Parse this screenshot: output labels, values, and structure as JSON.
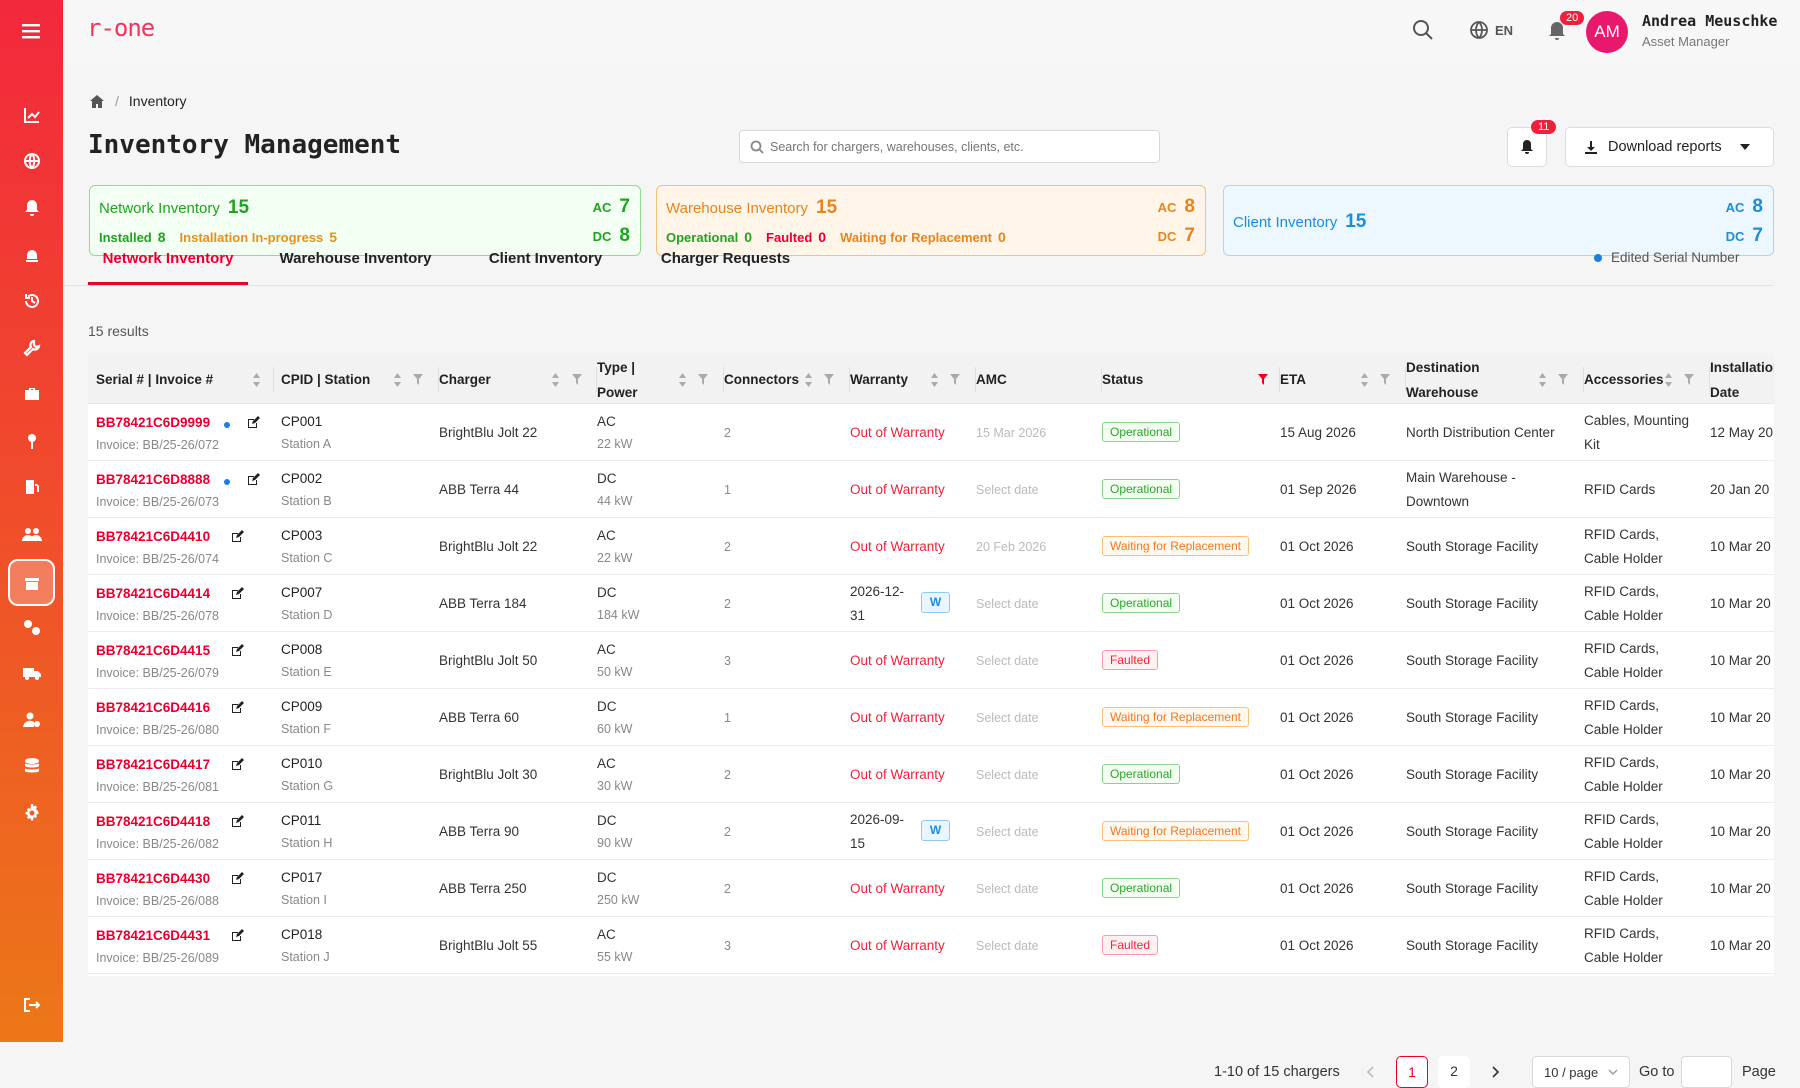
{
  "app": {
    "logo": "r-one"
  },
  "user": {
    "initials": "AM",
    "name": "Andrea Meuschke",
    "role": "Asset Manager"
  },
  "header": {
    "language": "EN",
    "notifications_count": "20"
  },
  "breadcrumb": {
    "current": "Inventory"
  },
  "page": {
    "title": "Inventory Management",
    "search_placeholder": "Search for chargers, warehouses, clients, etc.",
    "alerts_count": "11",
    "download_label": "Download reports"
  },
  "cards": {
    "network": {
      "title": "Network Inventory",
      "total": "15",
      "installed_label": "Installed",
      "installed": "8",
      "inprogress_label": "Installation In-progress",
      "inprogress": "5",
      "ac_label": "AC",
      "ac": "7",
      "dc_label": "DC",
      "dc": "8"
    },
    "warehouse": {
      "title": "Warehouse Inventory",
      "total": "15",
      "operational_label": "Operational",
      "operational": "0",
      "faulted_label": "Faulted",
      "faulted": "0",
      "waiting_label": "Waiting for Replacement",
      "waiting": "0",
      "ac_label": "AC",
      "ac": "8",
      "dc_label": "DC",
      "dc": "7"
    },
    "client": {
      "title": "Client Inventory",
      "total": "15",
      "ac_label": "AC",
      "ac": "8",
      "dc_label": "DC",
      "dc": "7"
    }
  },
  "tabs": [
    "Network Inventory",
    "Warehouse Inventory",
    "Client Inventory",
    "Charger Requests"
  ],
  "legend": {
    "edited_serial": "Edited Serial Number"
  },
  "results": "15 results",
  "columns": {
    "serial": "Serial # | Invoice #",
    "cpid": "CPID | Station",
    "charger": "Charger",
    "type": "Type |",
    "type2": "Power",
    "connectors": "Connectors",
    "warranty": "Warranty",
    "amc": "AMC",
    "status": "Status",
    "eta": "ETA",
    "dest": "Destination",
    "dest2": "Warehouse",
    "accessories": "Accessories",
    "install": "Installation",
    "install2": "Date"
  },
  "rows": [
    {
      "serial": "BB78421C6D9999",
      "invoice": "Invoice: BB/25-26/072",
      "cpid": "CP001",
      "station": "Station A",
      "charger": "BrightBlu Jolt 22",
      "type": "AC",
      "power": "22 kW",
      "connectors": "2",
      "warranty": "Out of Warranty",
      "amc": "15 Mar 2026",
      "status": "Operational",
      "eta": "15 Aug 2026",
      "dest": "North Distribution Center",
      "dest2": "",
      "acc": "Cables, Mounting",
      "acc2": "Kit",
      "install": "12 May 20"
    },
    {
      "serial": "BB78421C6D8888",
      "invoice": "Invoice: BB/25-26/073",
      "cpid": "CP002",
      "station": "Station B",
      "charger": "ABB Terra 44",
      "type": "DC",
      "power": "44 kW",
      "connectors": "1",
      "warranty": "Out of Warranty",
      "amc": "Select date",
      "status": "Operational",
      "eta": "01 Sep 2026",
      "dest": "Main Warehouse -",
      "dest2": "Downtown",
      "acc": "RFID Cards",
      "acc2": "",
      "install": "20 Jan 20"
    },
    {
      "serial": "BB78421C6D4410",
      "invoice": "Invoice: BB/25-26/074",
      "cpid": "CP003",
      "station": "Station C",
      "charger": "BrightBlu Jolt 22",
      "type": "AC",
      "power": "22 kW",
      "connectors": "2",
      "warranty": "Out of Warranty",
      "amc": "20 Feb 2026",
      "status": "Waiting for Replacement",
      "eta": "01 Oct 2026",
      "dest": "South Storage Facility",
      "dest2": "",
      "acc": "RFID Cards,",
      "acc2": "Cable Holder",
      "install": "10 Mar 20"
    },
    {
      "serial": "BB78421C6D4414",
      "invoice": "Invoice: BB/25-26/078",
      "cpid": "CP007",
      "station": "Station D",
      "charger": "ABB Terra 184",
      "type": "DC",
      "power": "184 kW",
      "connectors": "2",
      "warranty": "2026-12-",
      "warranty2": "31",
      "wbadge": "W",
      "amc": "Select date",
      "status": "Operational",
      "eta": "01 Oct 2026",
      "dest": "South Storage Facility",
      "dest2": "",
      "acc": "RFID Cards,",
      "acc2": "Cable Holder",
      "install": "10 Mar 20"
    },
    {
      "serial": "BB78421C6D4415",
      "invoice": "Invoice: BB/25-26/079",
      "cpid": "CP008",
      "station": "Station E",
      "charger": "BrightBlu Jolt 50",
      "type": "AC",
      "power": "50 kW",
      "connectors": "3",
      "warranty": "Out of Warranty",
      "amc": "Select date",
      "status": "Faulted",
      "eta": "01 Oct 2026",
      "dest": "South Storage Facility",
      "dest2": "",
      "acc": "RFID Cards,",
      "acc2": "Cable Holder",
      "install": "10 Mar 20"
    },
    {
      "serial": "BB78421C6D4416",
      "invoice": "Invoice: BB/25-26/080",
      "cpid": "CP009",
      "station": "Station F",
      "charger": "ABB Terra 60",
      "type": "DC",
      "power": "60 kW",
      "connectors": "1",
      "warranty": "Out of Warranty",
      "amc": "Select date",
      "status": "Waiting for Replacement",
      "eta": "01 Oct 2026",
      "dest": "South Storage Facility",
      "dest2": "",
      "acc": "RFID Cards,",
      "acc2": "Cable Holder",
      "install": "10 Mar 20"
    },
    {
      "serial": "BB78421C6D4417",
      "invoice": "Invoice: BB/25-26/081",
      "cpid": "CP010",
      "station": "Station G",
      "charger": "BrightBlu Jolt 30",
      "type": "AC",
      "power": "30 kW",
      "connectors": "2",
      "warranty": "Out of Warranty",
      "amc": "Select date",
      "status": "Operational",
      "eta": "01 Oct 2026",
      "dest": "South Storage Facility",
      "dest2": "",
      "acc": "RFID Cards,",
      "acc2": "Cable Holder",
      "install": "10 Mar 20"
    },
    {
      "serial": "BB78421C6D4418",
      "invoice": "Invoice: BB/25-26/082",
      "cpid": "CP011",
      "station": "Station H",
      "charger": "ABB Terra 90",
      "type": "DC",
      "power": "90 kW",
      "connectors": "2",
      "warranty": "2026-09-",
      "warranty2": "15",
      "wbadge": "W",
      "amc": "Select date",
      "status": "Waiting for Replacement",
      "eta": "01 Oct 2026",
      "dest": "South Storage Facility",
      "dest2": "",
      "acc": "RFID Cards,",
      "acc2": "Cable Holder",
      "install": "10 Mar 20"
    },
    {
      "serial": "BB78421C6D4430",
      "invoice": "Invoice: BB/25-26/088",
      "cpid": "CP017",
      "station": "Station I",
      "charger": "ABB Terra 250",
      "type": "DC",
      "power": "250 kW",
      "connectors": "2",
      "warranty": "Out of Warranty",
      "amc": "Select date",
      "status": "Operational",
      "eta": "01 Oct 2026",
      "dest": "South Storage Facility",
      "dest2": "",
      "acc": "RFID Cards,",
      "acc2": "Cable Holder",
      "install": "10 Mar 20"
    },
    {
      "serial": "BB78421C6D4431",
      "invoice": "Invoice: BB/25-26/089",
      "cpid": "CP018",
      "station": "Station J",
      "charger": "BrightBlu Jolt 55",
      "type": "AC",
      "power": "55 kW",
      "connectors": "3",
      "warranty": "Out of Warranty",
      "amc": "Select date",
      "status": "Faulted",
      "eta": "01 Oct 2026",
      "dest": "South Storage Facility",
      "dest2": "",
      "acc": "RFID Cards,",
      "acc2": "Cable Holder",
      "install": "10 Mar 20"
    }
  ],
  "pagination": {
    "summary": "1-10 of 15 chargers",
    "pages": [
      "1",
      "2"
    ],
    "page_size": "10 / page",
    "goto": "Go to",
    "page": "Page"
  }
}
